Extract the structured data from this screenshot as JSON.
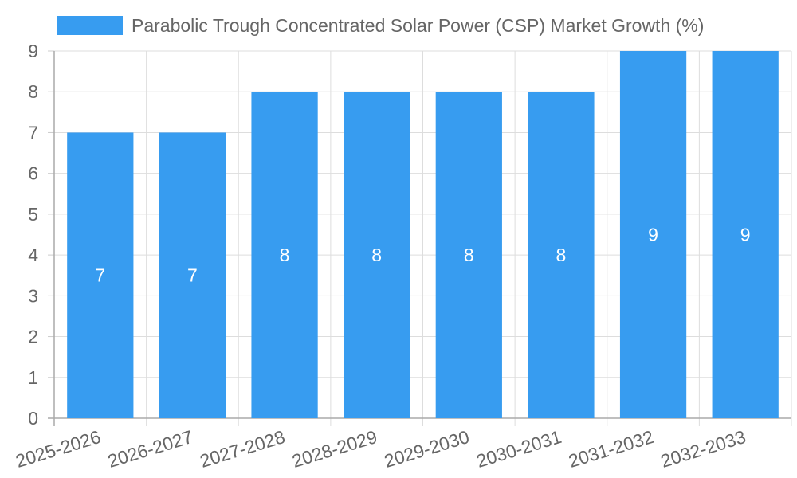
{
  "chart_data": {
    "type": "bar",
    "title": "",
    "xlabel": "",
    "ylabel": "",
    "categories": [
      "2025-2026",
      "2026-2027",
      "2027-2028",
      "2028-2029",
      "2029-2030",
      "2030-2031",
      "2031-2032",
      "2032-2033"
    ],
    "series": [
      {
        "name": "Parabolic Trough Concentrated Solar Power (CSP) Market Growth (%)",
        "values": [
          7,
          7,
          8,
          8,
          8,
          8,
          9,
          9
        ],
        "color": "#379CF0"
      }
    ],
    "ylim": [
      0,
      9
    ],
    "yticks": [
      "0",
      "1",
      "2",
      "3",
      "4",
      "5",
      "6",
      "7",
      "8",
      "9"
    ],
    "grid": true,
    "legend": "top",
    "data_labels": [
      "7",
      "7",
      "8",
      "8",
      "8",
      "8",
      "9",
      "9"
    ]
  }
}
